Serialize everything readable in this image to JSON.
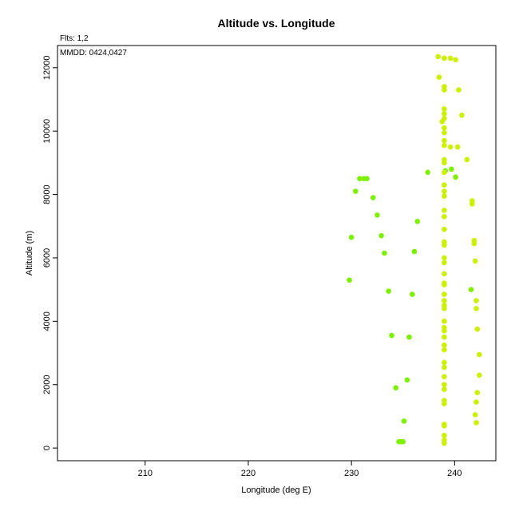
{
  "chart_data": {
    "type": "scatter",
    "title": "Altitude vs. Longitude",
    "xlabel": "Longitude (deg E)",
    "ylabel": "Altitude (m)",
    "xlim": [
      201.5,
      244
    ],
    "ylim": [
      -400,
      12700
    ],
    "xticks": [
      "210",
      "220",
      "230",
      "240"
    ],
    "yticks": [
      "0",
      "2000",
      "4000",
      "6000",
      "8000",
      "10000",
      "12000"
    ],
    "annotations": [
      "Flts: 1,2",
      "MMDD: 0424,0427"
    ],
    "grid": false,
    "legend": "none",
    "series": [
      {
        "color": "#7cf000",
        "points": [
          [
            229.8,
            5300
          ],
          [
            230.0,
            6650
          ],
          [
            230.4,
            8100
          ],
          [
            230.8,
            8500
          ],
          [
            231.2,
            8500
          ],
          [
            231.5,
            8500
          ],
          [
            232.1,
            7900
          ],
          [
            232.5,
            7350
          ],
          [
            232.9,
            6700
          ],
          [
            233.2,
            6150
          ],
          [
            233.6,
            4950
          ],
          [
            233.9,
            3550
          ],
          [
            234.3,
            1900
          ],
          [
            234.6,
            200
          ],
          [
            234.8,
            200
          ],
          [
            235.0,
            200
          ],
          [
            235.1,
            850
          ],
          [
            235.4,
            2150
          ],
          [
            235.6,
            3500
          ],
          [
            235.9,
            4850
          ],
          [
            236.1,
            6200
          ],
          [
            236.4,
            7150
          ],
          [
            237.4,
            8700
          ],
          [
            239.1,
            8750
          ],
          [
            239.7,
            8800
          ],
          [
            240.1,
            8550
          ],
          [
            241.6,
            5000
          ]
        ]
      },
      {
        "color": "#ccf000",
        "points": [
          [
            238.4,
            12350
          ],
          [
            238.5,
            11700
          ],
          [
            238.8,
            10300
          ],
          [
            239.0,
            12300
          ],
          [
            239.6,
            12300
          ],
          [
            240.1,
            12250
          ],
          [
            240.4,
            11300
          ],
          [
            240.7,
            10500
          ],
          [
            240.3,
            9500
          ],
          [
            239.6,
            9500
          ],
          [
            241.2,
            9100
          ],
          [
            241.7,
            7700
          ],
          [
            241.7,
            7800
          ],
          [
            241.9,
            6550
          ],
          [
            241.9,
            6450
          ],
          [
            242.0,
            5900
          ],
          [
            242.1,
            4650
          ],
          [
            242.1,
            4400
          ],
          [
            242.2,
            3750
          ],
          [
            242.4,
            2950
          ],
          [
            242.4,
            2300
          ],
          [
            242.2,
            1750
          ],
          [
            242.1,
            1450
          ],
          [
            242.0,
            1050
          ],
          [
            242.1,
            800
          ],
          [
            239.0,
            12300
          ],
          [
            239.0,
            11400
          ],
          [
            239.0,
            11300
          ],
          [
            239.0,
            10700
          ],
          [
            239.0,
            10550
          ],
          [
            239.0,
            10400
          ],
          [
            239.0,
            10100
          ],
          [
            239.0,
            9950
          ],
          [
            239.0,
            9700
          ],
          [
            239.0,
            9550
          ],
          [
            239.0,
            9100
          ],
          [
            239.0,
            9000
          ],
          [
            239.0,
            8700
          ],
          [
            239.0,
            8300
          ],
          [
            239.0,
            8100
          ],
          [
            239.0,
            7950
          ],
          [
            239.0,
            7500
          ],
          [
            239.0,
            7300
          ],
          [
            239.0,
            6900
          ],
          [
            239.0,
            6500
          ],
          [
            239.0,
            6400
          ],
          [
            239.0,
            6000
          ],
          [
            239.0,
            5850
          ],
          [
            239.0,
            5500
          ],
          [
            239.0,
            5200
          ],
          [
            239.0,
            5150
          ],
          [
            239.0,
            4850
          ],
          [
            239.0,
            4650
          ],
          [
            239.0,
            4500
          ],
          [
            239.0,
            4400
          ],
          [
            239.0,
            4000
          ],
          [
            239.0,
            3800
          ],
          [
            239.0,
            3700
          ],
          [
            239.0,
            3500
          ],
          [
            239.0,
            3250
          ],
          [
            239.0,
            3100
          ],
          [
            239.0,
            2700
          ],
          [
            239.0,
            2550
          ],
          [
            239.0,
            2250
          ],
          [
            239.0,
            2000
          ],
          [
            239.0,
            1850
          ],
          [
            239.0,
            1500
          ],
          [
            239.0,
            1400
          ],
          [
            239.0,
            750
          ],
          [
            239.0,
            700
          ],
          [
            239.0,
            400
          ],
          [
            239.0,
            250
          ],
          [
            239.0,
            150
          ]
        ]
      }
    ]
  }
}
